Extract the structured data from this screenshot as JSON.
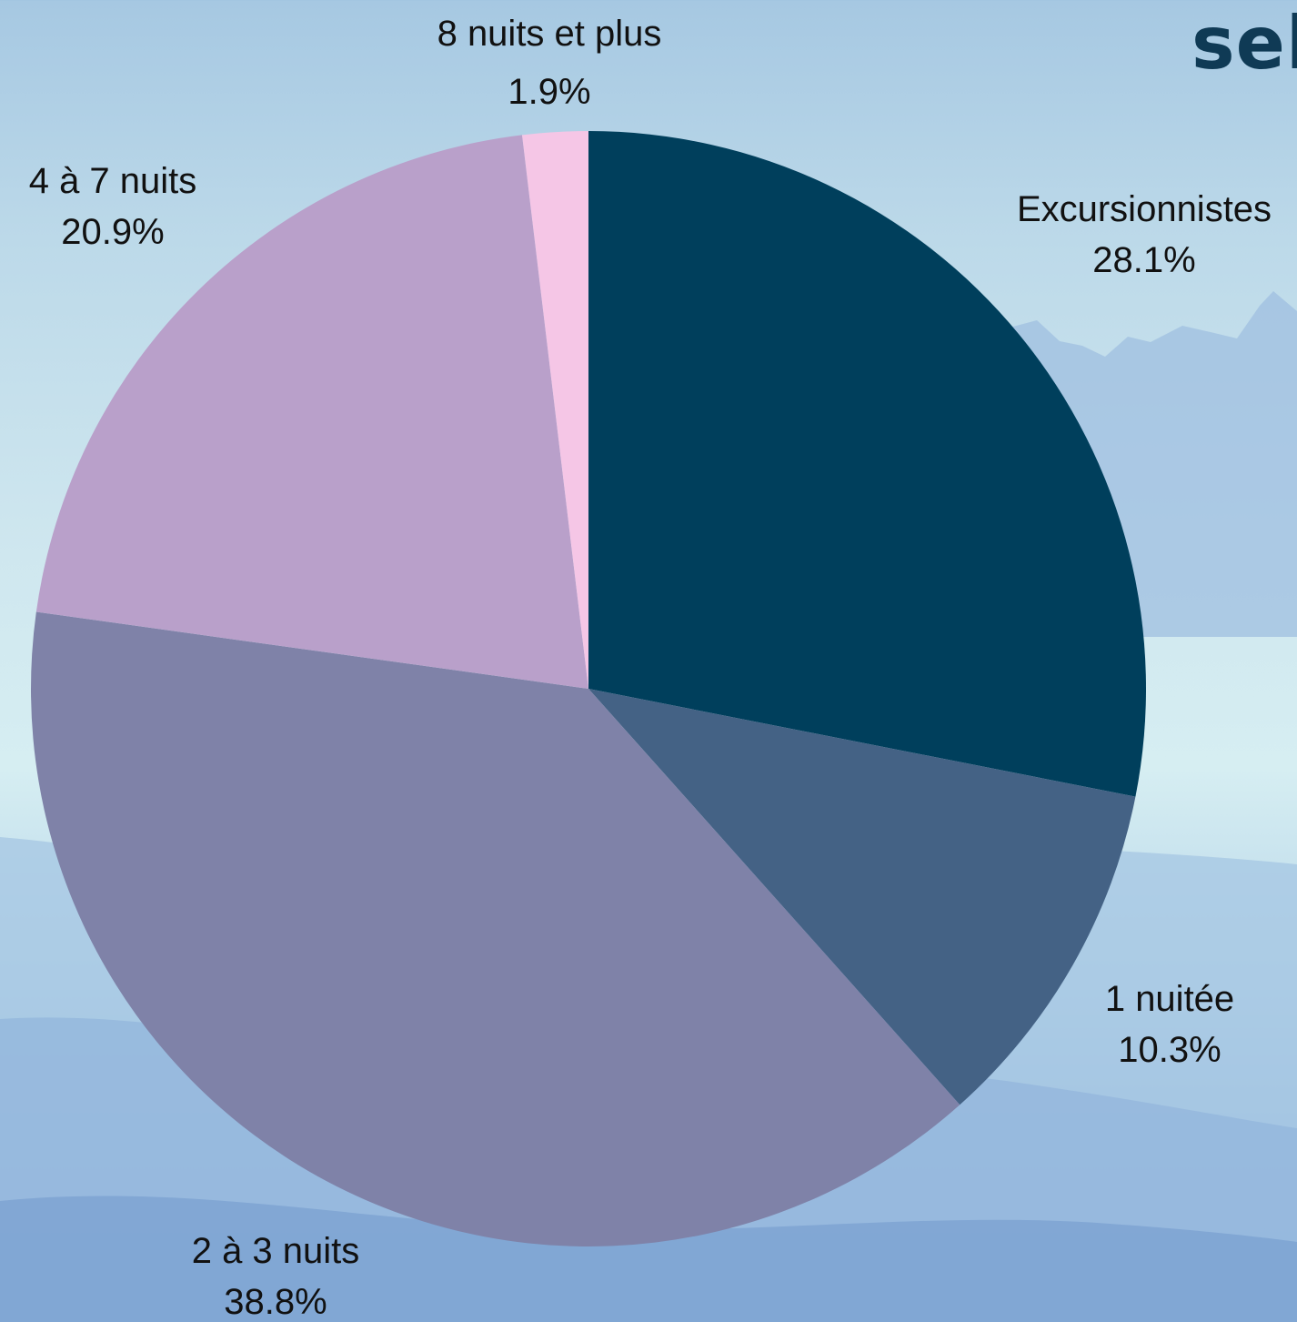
{
  "brand": {
    "logo_text": "sel"
  },
  "chart_data": {
    "type": "pie",
    "title": "",
    "start_angle_deg": 0,
    "direction": "clockwise",
    "slices": [
      {
        "label": "Excursionnistes",
        "value": 28.1,
        "value_label": "28.1%",
        "color": "#003f5c"
      },
      {
        "label": "1 nuitée",
        "value": 10.3,
        "value_label": "10.3%",
        "color": "#446285"
      },
      {
        "label": "2 à 3 nuits",
        "value": 38.8,
        "value_label": "38.8%",
        "color": "#7f82a8"
      },
      {
        "label": "4 à 7 nuits",
        "value": 20.9,
        "value_label": "20.9%",
        "color": "#b9a0ca"
      },
      {
        "label": "8 nuits et plus",
        "value": 1.9,
        "value_label": "1.9%",
        "color": "#f5c6e6"
      }
    ]
  }
}
